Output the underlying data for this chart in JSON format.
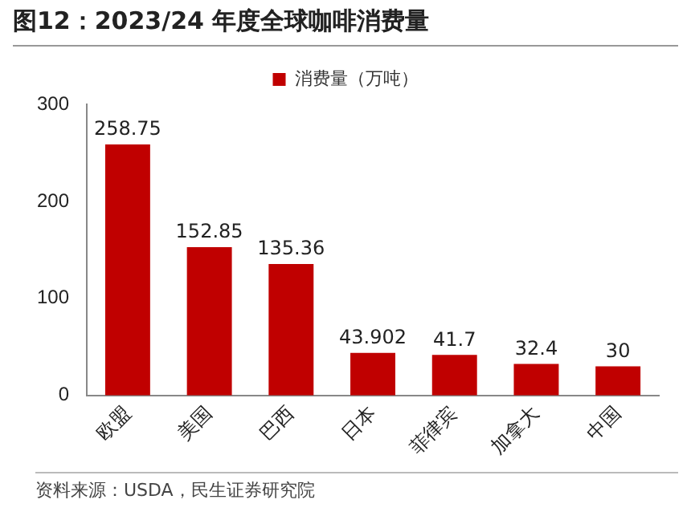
{
  "chart_data": {
    "type": "bar",
    "title": "图12：2023/24 年度全球咖啡消费量",
    "categories": [
      "欧盟",
      "美国",
      "巴西",
      "日本",
      "菲律宾",
      "加拿大",
      "中国"
    ],
    "series": [
      {
        "name": "消费量（万吨）",
        "color": "#c00000",
        "values": [
          258.75,
          152.85,
          135.36,
          43.902,
          41.7,
          32.4,
          30
        ]
      }
    ],
    "ylim": [
      0,
      300
    ],
    "yticks": [
      0,
      100,
      200,
      300
    ],
    "grid": false,
    "legend": "top",
    "data_labels": true,
    "annotations": [
      "资料来源：USDA，民生证券研究院"
    ]
  }
}
